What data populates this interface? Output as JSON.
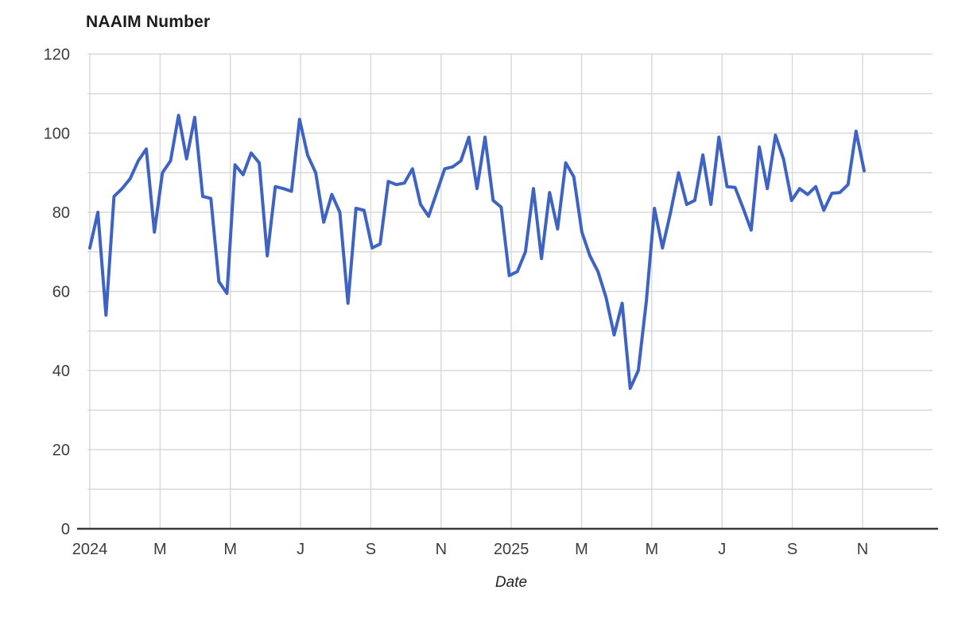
{
  "title": "NAAIM Number",
  "x_axis_title": "Date",
  "colors": {
    "line": "#3F63C2",
    "grid": "#D8D8D8",
    "axis_line": "#3a3a3a",
    "tick_text": "#3d3d3d",
    "title_text": "#1c1c1c",
    "background": "#ffffff"
  },
  "chart_data": {
    "type": "line",
    "title": "NAAIM Number",
    "xlabel": "Date",
    "ylabel": "",
    "ylim": [
      0,
      120
    ],
    "y_tick_step": 20,
    "y_grid_step": 10,
    "grid": true,
    "legend": false,
    "x_tick_labels": [
      "2024",
      "M",
      "M",
      "J",
      "S",
      "N",
      "2025",
      "M",
      "M",
      "J",
      "S",
      "N"
    ],
    "x_tick_meaning": "Jan 2024 to Nov 2025, one label every two months",
    "frequency": "weekly",
    "series": [
      {
        "name": "NAAIM Number",
        "values": [
          71,
          80,
          54,
          84,
          86,
          88.5,
          93,
          96,
          75,
          90,
          93,
          104.5,
          93.5,
          104,
          84,
          83.5,
          62.5,
          59.5,
          92,
          89.5,
          95,
          92.5,
          69,
          86.5,
          86,
          85.3,
          103.5,
          94.5,
          90,
          77.5,
          84.5,
          80,
          57,
          81,
          80.5,
          71,
          72,
          87.8,
          87,
          87.4,
          91,
          82,
          79,
          85,
          91,
          91.5,
          93,
          99,
          86,
          99,
          83,
          81.3,
          64,
          65,
          70,
          86,
          68.3,
          85,
          75.8,
          92.5,
          89,
          75,
          69,
          65,
          58.5,
          49,
          57,
          35.5,
          40,
          57.5,
          81,
          71,
          80,
          90,
          82,
          83,
          94.5,
          82,
          99,
          86.5,
          86.3,
          81,
          75.5,
          96.5,
          86,
          99.5,
          93.5,
          83,
          86,
          84.5,
          86.5,
          80.5,
          84.8,
          85,
          87,
          100.5,
          90.5
        ]
      }
    ]
  }
}
